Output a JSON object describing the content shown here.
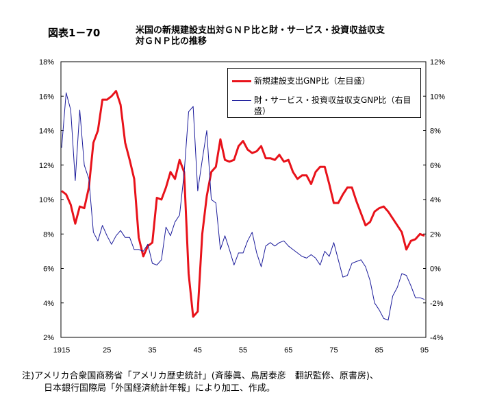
{
  "figure_number": "図表1－70",
  "title_line1": "米国の新規建設支出対ＧＮＰ比と財・サービス・投資収益収支",
  "title_line2": "対ＧＮＰ比の推移",
  "notes": [
    "注)アメリカ合衆国商務省「アメリカ歴史統計」(斉藤眞、鳥居泰彦　翻訳監修、原書房)、",
    "日本銀行国際局「外国経済統計年報」により加工、作成。"
  ],
  "chart_data": {
    "type": "line",
    "x": [
      1915,
      1916,
      1917,
      1918,
      1919,
      1920,
      1921,
      1922,
      1923,
      1924,
      1925,
      1926,
      1927,
      1928,
      1929,
      1930,
      1931,
      1932,
      1933,
      1934,
      1935,
      1936,
      1937,
      1938,
      1939,
      1940,
      1941,
      1942,
      1943,
      1944,
      1945,
      1946,
      1947,
      1948,
      1949,
      1950,
      1951,
      1952,
      1953,
      1954,
      1955,
      1956,
      1957,
      1958,
      1959,
      1960,
      1961,
      1962,
      1963,
      1964,
      1965,
      1966,
      1967,
      1968,
      1969,
      1970,
      1971,
      1972,
      1973,
      1974,
      1975,
      1976,
      1977,
      1978,
      1979,
      1980,
      1981,
      1982,
      1983,
      1984,
      1985,
      1986,
      1987,
      1988,
      1989,
      1990,
      1991,
      1992,
      1993,
      1994,
      1995
    ],
    "xticks": [
      1915,
      1925,
      1935,
      1945,
      1955,
      1965,
      1975,
      1985,
      1995
    ],
    "xtick_labels": [
      "1915",
      "25",
      "35",
      "45",
      "55",
      "65",
      "75",
      "85",
      "95"
    ],
    "y_left": {
      "range": [
        2,
        18
      ],
      "ticks": [
        "2%",
        "4%",
        "6%",
        "8%",
        "10%",
        "12%",
        "14%",
        "16%",
        "18%"
      ]
    },
    "y_right": {
      "range": [
        -4,
        12
      ],
      "ticks": [
        "-4%",
        "-2%",
        "0%",
        "2%",
        "4%",
        "6%",
        "8%",
        "10%",
        "12%"
      ]
    },
    "series": [
      {
        "name": "新規建設支出GNP比（左目盛）",
        "axis": "left",
        "color": "#e8121a",
        "values": [
          10.5,
          10.3,
          9.7,
          8.6,
          9.6,
          9.5,
          10.7,
          13.3,
          14.0,
          15.8,
          15.8,
          16.0,
          16.3,
          15.5,
          13.3,
          12.3,
          11.2,
          7.8,
          6.7,
          7.3,
          7.5,
          10.1,
          10.0,
          10.7,
          11.6,
          11.2,
          12.3,
          11.6,
          5.7,
          3.2,
          3.5,
          8.0,
          10.2,
          11.6,
          11.9,
          13.5,
          12.3,
          12.2,
          12.3,
          13.1,
          13.4,
          12.9,
          12.7,
          12.8,
          13.1,
          12.4,
          12.4,
          12.3,
          12.6,
          12.2,
          12.3,
          11.6,
          11.2,
          11.4,
          11.4,
          10.9,
          11.6,
          11.9,
          11.9,
          10.9,
          9.8,
          9.8,
          10.3,
          10.7,
          10.7,
          9.9,
          9.2,
          8.5,
          8.7,
          9.3,
          9.5,
          9.6,
          9.3,
          8.9,
          8.5,
          8.1,
          7.1,
          7.6,
          7.7,
          8.0,
          7.9
        ]
      },
      {
        "name": "財・サービス・投資収益収支GNP比（右目盛）",
        "axis": "right",
        "color": "#1a1a9a",
        "values": [
          7.0,
          10.2,
          9.2,
          5.1,
          9.2,
          6.0,
          5.2,
          2.1,
          1.6,
          2.5,
          1.9,
          1.4,
          1.9,
          2.2,
          1.8,
          1.8,
          1.1,
          1.1,
          1.0,
          1.4,
          0.3,
          0.2,
          0.5,
          2.4,
          1.9,
          2.7,
          3.1,
          5.5,
          9.1,
          9.4,
          4.5,
          6.3,
          8.0,
          4.0,
          3.8,
          1.1,
          1.9,
          1.1,
          0.2,
          0.9,
          0.9,
          1.6,
          2.1,
          0.9,
          0.1,
          1.3,
          1.5,
          1.3,
          1.5,
          1.6,
          1.3,
          1.1,
          0.9,
          0.7,
          0.6,
          0.8,
          0.6,
          0.2,
          1.0,
          0.7,
          1.5,
          0.5,
          -0.5,
          -0.4,
          0.3,
          0.4,
          0.5,
          0.1,
          -0.7,
          -2.0,
          -2.4,
          -2.9,
          -3.0,
          -1.6,
          -1.1,
          -0.3,
          -0.4,
          -1.0,
          -1.7,
          -1.7,
          -1.8
        ]
      }
    ],
    "legend_position": "top-right"
  }
}
